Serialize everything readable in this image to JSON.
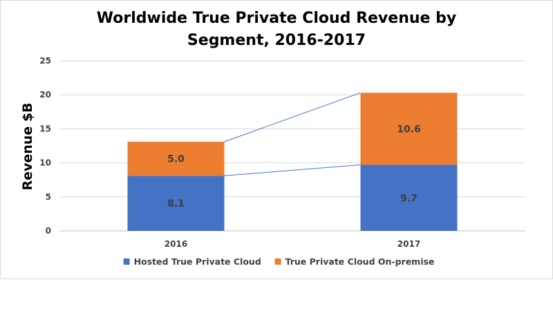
{
  "chart_data": {
    "type": "bar",
    "stacked": true,
    "title": "Worldwide True Private Cloud Revenue by Segment, 2016-2017",
    "title_lines": [
      "Worldwide True Private Cloud Revenue by",
      "Segment, 2016-2017"
    ],
    "xlabel": "",
    "ylabel": "Revenue $B",
    "ylim": [
      0,
      25
    ],
    "yticks": [
      0,
      5,
      10,
      15,
      20,
      25
    ],
    "categories": [
      "2016",
      "2017"
    ],
    "series": [
      {
        "name": "Hosted True Private Cloud",
        "values": [
          8.1,
          9.7
        ],
        "labels": [
          "8.1",
          "9.7"
        ],
        "color": "#4472C4"
      },
      {
        "name": "True Private Cloud On-premise",
        "values": [
          5.0,
          10.6
        ],
        "labels": [
          "5.0",
          "10.6"
        ],
        "color": "#ED7D31"
      }
    ],
    "series_lines": true,
    "grid": true,
    "legend": "bottom"
  },
  "colors": {
    "gridline": "#d9d9d9",
    "axis": "#bfbfbf",
    "series_line": "#4472C4"
  }
}
